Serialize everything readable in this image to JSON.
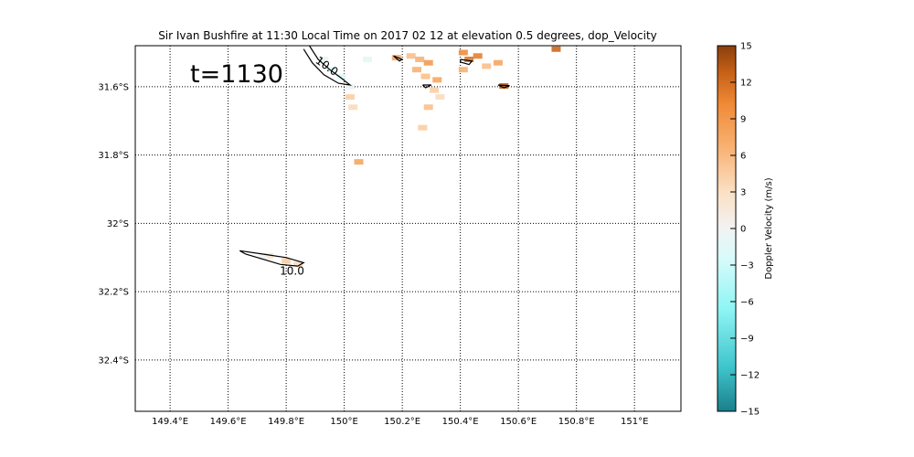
{
  "chart_data": {
    "type": "heatmap",
    "title": "Sir Ivan Bushfire at 11:30 Local Time on 2017 02 12 at elevation 0.5 degrees, dop_Velocity",
    "time_label": "t=1130",
    "x_ticks": [
      {
        "value": 149.4,
        "label": "149.4°E"
      },
      {
        "value": 149.6,
        "label": "149.6°E"
      },
      {
        "value": 149.8,
        "label": "149.8°E"
      },
      {
        "value": 150.0,
        "label": "150°E"
      },
      {
        "value": 150.2,
        "label": "150.2°E"
      },
      {
        "value": 150.4,
        "label": "150.4°E"
      },
      {
        "value": 150.6,
        "label": "150.6°E"
      },
      {
        "value": 150.8,
        "label": "150.8°E"
      },
      {
        "value": 151.0,
        "label": "151°E"
      }
    ],
    "y_ticks": [
      {
        "value": -31.6,
        "label": "31.6°S"
      },
      {
        "value": -31.8,
        "label": "31.8°S"
      },
      {
        "value": -32.0,
        "label": "32°S"
      },
      {
        "value": -32.2,
        "label": "32.2°S"
      },
      {
        "value": -32.4,
        "label": "32.4°S"
      }
    ],
    "xlim": [
      149.28,
      151.16
    ],
    "ylim": [
      -32.55,
      -31.48
    ],
    "grid": true,
    "colorbar": {
      "label": "Doppler Velocity (m/s)",
      "range": [
        -15,
        15
      ],
      "ticks": [
        15,
        12,
        9,
        6,
        3,
        0,
        -3,
        -6,
        -9,
        -12,
        -15
      ],
      "tick_labels": [
        "15",
        "12",
        "9",
        "6",
        "3",
        "0",
        "−3",
        "−6",
        "−9",
        "−12",
        "−15"
      ],
      "colors": [
        "#1a7f8c",
        "#3fc4cc",
        "#8ff5f5",
        "#d8fbfa",
        "#f2f2f2",
        "#fbe0c4",
        "#f8b274",
        "#f08a37",
        "#c45f16",
        "#8a3e0b"
      ]
    },
    "contour_labels": [
      {
        "text": "10.0",
        "lon": 149.82,
        "lat": -32.14
      },
      {
        "text": "10.0",
        "lon": 149.94,
        "lat": -31.54
      }
    ],
    "contours": [
      [
        [
          149.64,
          -32.08
        ],
        [
          149.72,
          -32.09
        ],
        [
          149.8,
          -32.1
        ],
        [
          149.86,
          -32.115
        ],
        [
          149.84,
          -32.125
        ],
        [
          149.78,
          -32.12
        ],
        [
          149.72,
          -32.105
        ],
        [
          149.66,
          -32.09
        ],
        [
          149.64,
          -32.08
        ]
      ],
      [
        [
          149.88,
          -31.48
        ],
        [
          149.91,
          -31.52
        ],
        [
          149.95,
          -31.55
        ],
        [
          149.99,
          -31.575
        ],
        [
          150.02,
          -31.595
        ],
        [
          149.98,
          -31.59
        ],
        [
          149.93,
          -31.565
        ],
        [
          149.89,
          -31.53
        ],
        [
          149.86,
          -31.49
        ]
      ],
      [
        [
          150.17,
          -31.51
        ],
        [
          150.2,
          -31.52
        ],
        [
          150.19,
          -31.525
        ],
        [
          150.17,
          -31.51
        ]
      ],
      [
        [
          150.4,
          -31.52
        ],
        [
          150.44,
          -31.525
        ],
        [
          150.43,
          -31.535
        ],
        [
          150.4,
          -31.528
        ],
        [
          150.4,
          -31.52
        ]
      ],
      [
        [
          150.27,
          -31.595
        ],
        [
          150.3,
          -31.595
        ],
        [
          150.28,
          -31.603
        ],
        [
          150.27,
          -31.595
        ]
      ],
      [
        [
          150.53,
          -31.595
        ],
        [
          150.57,
          -31.597
        ],
        [
          150.55,
          -31.603
        ],
        [
          150.53,
          -31.595
        ]
      ]
    ],
    "cells": [
      {
        "lon": 149.74,
        "lat": -32.095,
        "v": 1
      },
      {
        "lon": 149.8,
        "lat": -32.11,
        "v": 3
      },
      {
        "lon": 149.72,
        "lat": -32.1,
        "v": -2
      },
      {
        "lon": 149.84,
        "lat": -32.12,
        "v": 2
      },
      {
        "lon": 149.93,
        "lat": -31.52,
        "v": -3
      },
      {
        "lon": 149.96,
        "lat": -31.55,
        "v": -5
      },
      {
        "lon": 149.99,
        "lat": -31.57,
        "v": -4
      },
      {
        "lon": 150.02,
        "lat": -31.6,
        "v": -2
      },
      {
        "lon": 150.02,
        "lat": -31.63,
        "v": 3
      },
      {
        "lon": 150.03,
        "lat": -31.66,
        "v": 2
      },
      {
        "lon": 150.18,
        "lat": -31.515,
        "v": 6
      },
      {
        "lon": 150.23,
        "lat": -31.51,
        "v": 4
      },
      {
        "lon": 150.26,
        "lat": -31.52,
        "v": 5
      },
      {
        "lon": 150.29,
        "lat": -31.53,
        "v": 7
      },
      {
        "lon": 150.25,
        "lat": -31.55,
        "v": 5
      },
      {
        "lon": 150.28,
        "lat": -31.57,
        "v": 4
      },
      {
        "lon": 150.32,
        "lat": -31.58,
        "v": 6
      },
      {
        "lon": 150.31,
        "lat": -31.61,
        "v": 3
      },
      {
        "lon": 150.33,
        "lat": -31.63,
        "v": 2
      },
      {
        "lon": 150.29,
        "lat": -31.66,
        "v": 4
      },
      {
        "lon": 150.27,
        "lat": -31.72,
        "v": 3
      },
      {
        "lon": 150.41,
        "lat": -31.5,
        "v": 8
      },
      {
        "lon": 150.43,
        "lat": -31.52,
        "v": 10
      },
      {
        "lon": 150.46,
        "lat": -31.51,
        "v": 9
      },
      {
        "lon": 150.41,
        "lat": -31.55,
        "v": 5
      },
      {
        "lon": 150.49,
        "lat": -31.54,
        "v": 4
      },
      {
        "lon": 150.53,
        "lat": -31.53,
        "v": 6
      },
      {
        "lon": 150.55,
        "lat": -31.598,
        "v": 12
      },
      {
        "lon": 150.73,
        "lat": -31.49,
        "v": 11
      },
      {
        "lon": 150.08,
        "lat": -31.52,
        "v": -4
      },
      {
        "lon": 150.05,
        "lat": -31.82,
        "v": 6
      }
    ]
  }
}
